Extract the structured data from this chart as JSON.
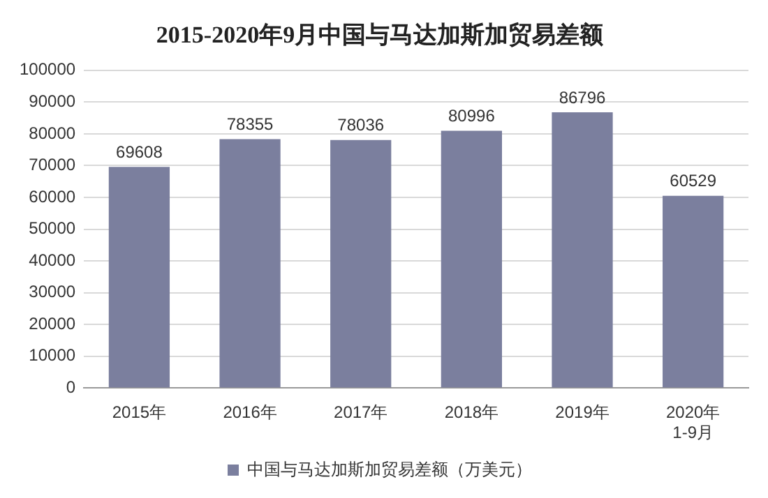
{
  "chart_data": {
    "type": "bar",
    "title": "2015-2020年9月中国与马达加斯加贸易差额",
    "categories": [
      "2015年",
      "2016年",
      "2017年",
      "2018年",
      "2019年",
      "2020年\n1-9月"
    ],
    "series": [
      {
        "name": "中国与马达加斯加贸易差额（万美元）",
        "color": "#7b7f9e",
        "values": [
          69608,
          78355,
          78036,
          80996,
          86796,
          60529
        ]
      }
    ],
    "ylim": [
      0,
      100000
    ],
    "yticks": [
      0,
      10000,
      20000,
      30000,
      40000,
      50000,
      60000,
      70000,
      80000,
      90000,
      100000
    ],
    "grid": "y",
    "legend": "bottom",
    "data_labels": true
  }
}
